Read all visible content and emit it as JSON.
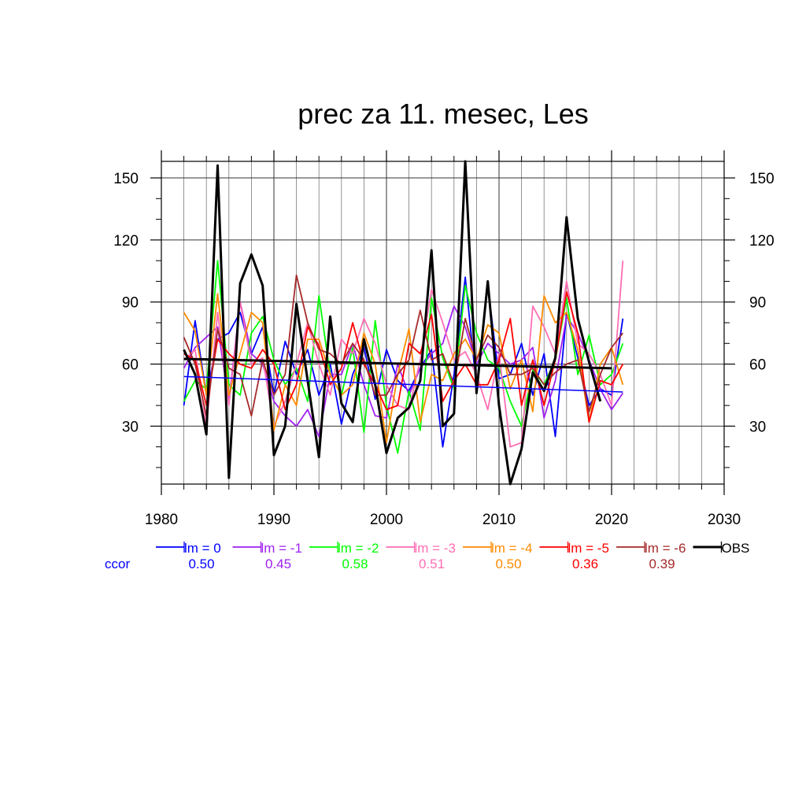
{
  "chart_data": {
    "type": "line",
    "title": "prec za 11. mesec, Les",
    "xlabel": "",
    "ylabel": "",
    "xlim": [
      1980,
      2030
    ],
    "ylim": [
      2,
      158
    ],
    "x_ticks": [
      1980,
      1990,
      2000,
      2010,
      2020,
      2030
    ],
    "y_ticks": [
      30,
      60,
      90,
      120,
      150
    ],
    "grid": true,
    "x": [
      1982,
      1983,
      1984,
      1985,
      1986,
      1987,
      1988,
      1989,
      1990,
      1991,
      1992,
      1993,
      1994,
      1995,
      1996,
      1997,
      1998,
      1999,
      2000,
      2001,
      2002,
      2003,
      2004,
      2005,
      2006,
      2007,
      2008,
      2009,
      2010,
      2011,
      2012,
      2013,
      2014,
      2015,
      2016,
      2017,
      2018,
      2019,
      2020,
      2021
    ],
    "series": [
      {
        "name": "lm = 0",
        "color": "#0000ff",
        "ccor": "0.50",
        "values": [
          40,
          81,
          45,
          72,
          75,
          85,
          65,
          78,
          45,
          71,
          55,
          67,
          45,
          60,
          31,
          55,
          68,
          43,
          67,
          52,
          47,
          58,
          67,
          20,
          55,
          102,
          49,
          98,
          53,
          55,
          70,
          45,
          65,
          25,
          85,
          63,
          40,
          48,
          45,
          82
        ],
        "trend": [
          54,
          46.5
        ]
      },
      {
        "name": "lm = -1",
        "color": "#a020f0",
        "ccor": "0.45",
        "values": [
          58,
          68,
          73,
          78,
          42,
          90,
          65,
          60,
          42,
          35,
          30,
          38,
          25,
          55,
          55,
          70,
          50,
          35,
          34,
          60,
          45,
          58,
          65,
          70,
          88,
          78,
          60,
          70,
          65,
          60,
          62,
          68,
          34,
          52,
          83,
          75,
          62,
          48,
          38,
          46
        ]
      },
      {
        "name": "lm = -2",
        "color": "#00ff00",
        "ccor": "0.58",
        "values": [
          42,
          52,
          48,
          110,
          50,
          45,
          75,
          83,
          62,
          50,
          58,
          42,
          93,
          55,
          45,
          68,
          27,
          81,
          40,
          17,
          47,
          28,
          92,
          63,
          48,
          98,
          75,
          62,
          58,
          42,
          30,
          57,
          50,
          62,
          92,
          55,
          74,
          50,
          55,
          70
        ]
      },
      {
        "name": "lm = -3",
        "color": "#ff6eb4",
        "ccor": "0.51",
        "values": [
          62,
          67,
          30,
          85,
          40,
          90,
          60,
          63,
          30,
          42,
          60,
          80,
          60,
          45,
          72,
          65,
          82,
          70,
          50,
          40,
          38,
          62,
          96,
          80,
          62,
          66,
          55,
          38,
          65,
          20,
          22,
          88,
          78,
          65,
          100,
          70,
          65,
          55,
          40,
          110
        ]
      },
      {
        "name": "lm = -4",
        "color": "#ff8c00",
        "ccor": "0.50",
        "values": [
          85,
          76,
          45,
          94,
          45,
          65,
          85,
          80,
          28,
          50,
          40,
          72,
          72,
          55,
          45,
          50,
          75,
          60,
          22,
          55,
          77,
          32,
          55,
          52,
          65,
          72,
          62,
          79,
          75,
          48,
          62,
          37,
          93,
          80,
          85,
          67,
          32,
          60,
          68,
          50
        ]
      },
      {
        "name": "lm = -5",
        "color": "#ff0000",
        "ccor": "0.36",
        "values": [
          65,
          62,
          40,
          72,
          65,
          60,
          58,
          67,
          60,
          38,
          50,
          78,
          69,
          50,
          58,
          80,
          60,
          50,
          38,
          40,
          70,
          65,
          84,
          42,
          52,
          60,
          50,
          50,
          62,
          82,
          40,
          62,
          40,
          62,
          95,
          75,
          32,
          52,
          50,
          60
        ]
      },
      {
        "name": "lm = -6",
        "color": "#a52a2a",
        "ccor": "0.39",
        "values": [
          73,
          60,
          35,
          77,
          58,
          55,
          35,
          62,
          45,
          55,
          103,
          80,
          67,
          65,
          60,
          70,
          62,
          45,
          45,
          55,
          62,
          86,
          62,
          65,
          50,
          82,
          62,
          74,
          68,
          55,
          55,
          58,
          50,
          56,
          60,
          62,
          37,
          55,
          68,
          75
        ]
      },
      {
        "name": "OBS",
        "color": "#000000",
        "ccor": "",
        "values": [
          67,
          55,
          26,
          156,
          5,
          99,
          113,
          98,
          16,
          30,
          89,
          52,
          15,
          83,
          41,
          32,
          72,
          50,
          17,
          34,
          39,
          52,
          115,
          30,
          36,
          158,
          46,
          100,
          40,
          2,
          19,
          56,
          47,
          63,
          131,
          82,
          61,
          42,
          null,
          null
        ],
        "trend": [
          62.5,
          58
        ]
      }
    ],
    "legend": {
      "placement": "bottom",
      "ccor_label": "ccor"
    }
  }
}
